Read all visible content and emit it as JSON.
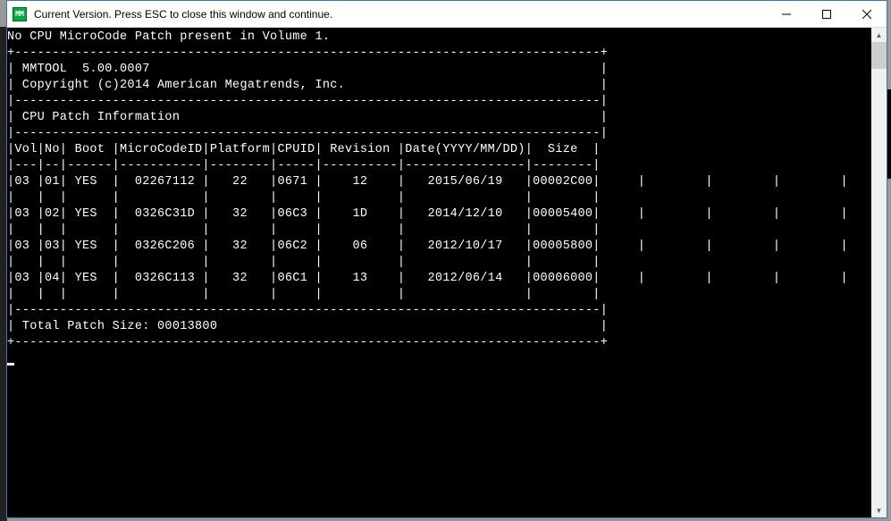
{
  "window": {
    "icon_text": "MM",
    "title": "Current Version. Press ESC to close this window and continue."
  },
  "console": {
    "warning": "No CPU MicroCode Patch present in Volume 1.",
    "tool_name": "MMTOOL  5.00.0007",
    "copyright": "Copyright (c)2014 American Megatrends, Inc.",
    "section_title": "CPU Patch Information",
    "headers": {
      "vol": "Vol",
      "no": "No",
      "boot": "Boot",
      "microcodeid": "MicroCodeID",
      "platform": "Platform",
      "cpuid": "CPUID",
      "revision": "Revision",
      "date": "Date(YYYY/MM/DD)",
      "size": "Size"
    },
    "rows": [
      {
        "vol": "03",
        "no": "01",
        "boot": "YES",
        "mcid": "02267112",
        "plat": "22",
        "cpuid": "0671",
        "rev": "12",
        "date": "2015/06/19",
        "size": "00002C00"
      },
      {
        "vol": "03",
        "no": "02",
        "boot": "YES",
        "mcid": "0326C31D",
        "plat": "32",
        "cpuid": "06C3",
        "rev": "1D",
        "date": "2014/12/10",
        "size": "00005400"
      },
      {
        "vol": "03",
        "no": "03",
        "boot": "YES",
        "mcid": "0326C206",
        "plat": "32",
        "cpuid": "06C2",
        "rev": "06",
        "date": "2012/10/17",
        "size": "00005800"
      },
      {
        "vol": "03",
        "no": "04",
        "boot": "YES",
        "mcid": "0326C113",
        "plat": "32",
        "cpuid": "06C1",
        "rev": "13",
        "date": "2012/06/14",
        "size": "00006000"
      }
    ],
    "total_label": "Total Patch Size:",
    "total_value": "00013800"
  }
}
